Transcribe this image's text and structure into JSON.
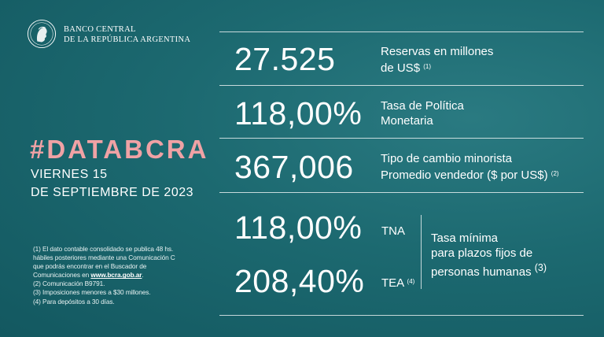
{
  "brand": {
    "line1": "BANCO CENTRAL",
    "line2": "DE LA REPÚBLICA ARGENTINA"
  },
  "hashtag": "#DATABCRA",
  "date": {
    "line1": "VIERNES 15",
    "line2": "DE SEPTIEMBRE DE 2023"
  },
  "footnotes": {
    "n1_a": "(1) El dato contable consolidado se publica 48 hs.",
    "n1_b": "hábiles posteriores mediante una Comunicación C",
    "n1_c": "que podrás encontrar en el Buscador de",
    "n1_d": "Comunicaciones en ",
    "n1_link": "www.bcra.gob.ar",
    "n1_end": ".",
    "n2": "(2) Comunicación B9791.",
    "n3": "(3) Imposiciones menores a $30 millones.",
    "n4": "(4) Para depósitos a 30 días."
  },
  "stats": {
    "reservas": {
      "value": "27.525",
      "line1": "Reservas en millones",
      "line2": "de US$",
      "note": "(1)"
    },
    "tasa_politica": {
      "value": "118,00%",
      "line1": "Tasa de Política",
      "line2": "Monetaria"
    },
    "tipo_cambio": {
      "value": "367,006",
      "line1": "Tipo de cambio minorista",
      "line2": "Promedio vendedor ($ por US$)",
      "note": "(2)"
    },
    "tna": {
      "value": "118,00%",
      "label": "TNA"
    },
    "tea": {
      "value": "208,40%",
      "label": "TEA",
      "note": "(4)"
    },
    "tasa_minima": {
      "line1": "Tasa mínima",
      "line2": "para plazos fijos de",
      "line3": "personas humanas",
      "note": "(3)"
    }
  }
}
